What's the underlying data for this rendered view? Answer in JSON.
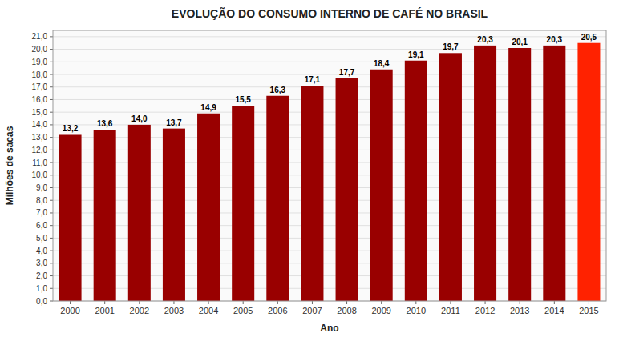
{
  "chart_data": {
    "type": "bar",
    "title": "EVOLUÇÃO DO CONSUMO INTERNO DE CAFÉ NO BRASIL",
    "xlabel": "Ano",
    "ylabel": "Milhões de sacas",
    "categories": [
      "2000",
      "2001",
      "2002",
      "2003",
      "2004",
      "2005",
      "2006",
      "2007",
      "2008",
      "2009",
      "2010",
      "2011",
      "2012",
      "2013",
      "2014",
      "2015"
    ],
    "values": [
      13.2,
      13.6,
      14.0,
      13.7,
      14.9,
      15.5,
      16.3,
      17.1,
      17.7,
      18.4,
      19.1,
      19.7,
      20.3,
      20.1,
      20.3,
      20.5
    ],
    "value_labels": [
      "13,2",
      "13,6",
      "14,0",
      "13,7",
      "14,9",
      "15,5",
      "16,3",
      "17,1",
      "17,7",
      "18,4",
      "19,1",
      "19,7",
      "20,3",
      "20,1",
      "20,3",
      "20,5"
    ],
    "colors": [
      "#990000",
      "#990000",
      "#990000",
      "#990000",
      "#990000",
      "#990000",
      "#990000",
      "#990000",
      "#990000",
      "#990000",
      "#990000",
      "#990000",
      "#990000",
      "#990000",
      "#990000",
      "#ff2200"
    ],
    "ylim": [
      0,
      21.5
    ],
    "yticks": [
      {
        "value": 0,
        "label": "0,0"
      },
      {
        "value": 1,
        "label": "1,0"
      },
      {
        "value": 2,
        "label": "2,0"
      },
      {
        "value": 3,
        "label": "3,0"
      },
      {
        "value": 4,
        "label": "4,0"
      },
      {
        "value": 5,
        "label": "5,0"
      },
      {
        "value": 6,
        "label": "6,0"
      },
      {
        "value": 7,
        "label": "7,0"
      },
      {
        "value": 8,
        "label": "8,0"
      },
      {
        "value": 9,
        "label": "9,0"
      },
      {
        "value": 10,
        "label": "10,0"
      },
      {
        "value": 11,
        "label": "11,0"
      },
      {
        "value": 12,
        "label": "12,0"
      },
      {
        "value": 13,
        "label": "13,0"
      },
      {
        "value": 14,
        "label": "14,0"
      },
      {
        "value": 15,
        "label": "15,0"
      },
      {
        "value": 16,
        "label": "16,0"
      },
      {
        "value": 17,
        "label": "17,0"
      },
      {
        "value": 18,
        "label": "18,0"
      },
      {
        "value": 19,
        "label": "19,0"
      },
      {
        "value": 20,
        "label": "20,0"
      },
      {
        "value": 21,
        "label": "21,0"
      }
    ],
    "grid": true,
    "data_labels": true
  }
}
